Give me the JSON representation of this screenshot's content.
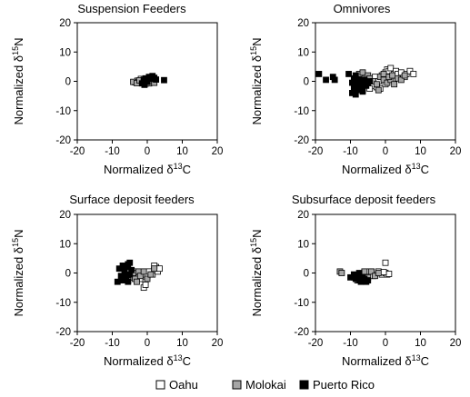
{
  "figure": {
    "legend": [
      {
        "name": "Oahu",
        "color": "#ffffff"
      },
      {
        "name": "Molokai",
        "color": "#a6a6a6"
      },
      {
        "name": "Puerto Rico",
        "color": "#000000"
      }
    ]
  },
  "chart_data": [
    {
      "type": "scatter",
      "title": "Suspension Feeders",
      "xlabel": "Normalized δ13C",
      "ylabel": "Normalized δ15N",
      "xlim": [
        -20,
        20
      ],
      "ylim": [
        -20,
        20
      ],
      "xticks": [
        "-20",
        "-10",
        "0",
        "10",
        "20"
      ],
      "yticks": [
        "20",
        "10",
        "0",
        "-10",
        "-20"
      ],
      "grid": false,
      "series": [
        {
          "name": "Oahu",
          "color": "#ffffff",
          "points": [
            [
              -3.5,
              -0.3
            ],
            [
              -2.8,
              0.2
            ],
            [
              -2.0,
              -0.5
            ],
            [
              -1.2,
              0.4
            ],
            [
              -0.5,
              -0.8
            ],
            [
              0.2,
              -0.3
            ],
            [
              0.8,
              0.5
            ],
            [
              1.5,
              -0.4
            ],
            [
              -1.8,
              0.8
            ]
          ]
        },
        {
          "name": "Molokai",
          "color": "#a6a6a6",
          "points": [
            [
              -4.0,
              -0.2
            ],
            [
              -3.0,
              -0.6
            ],
            [
              -2.2,
              0.3
            ],
            [
              -1.0,
              -0.4
            ],
            [
              -0.3,
              0.6
            ],
            [
              0.5,
              -0.7
            ],
            [
              1.2,
              0.1
            ],
            [
              2.0,
              -0.5
            ]
          ]
        },
        {
          "name": "Puerto Rico",
          "color": "#000000",
          "points": [
            [
              -1.5,
              -0.7
            ],
            [
              -1.0,
              0.5
            ],
            [
              -0.5,
              1.0
            ],
            [
              0.0,
              -0.2
            ],
            [
              0.5,
              1.5
            ],
            [
              1.0,
              0.8
            ],
            [
              1.5,
              1.8
            ],
            [
              2.0,
              1.2
            ],
            [
              2.5,
              0.6
            ],
            [
              -0.8,
              -1.2
            ],
            [
              4.8,
              0.4
            ]
          ]
        }
      ]
    },
    {
      "type": "scatter",
      "title": "Omnivores",
      "xlabel": "Normalized δ13C",
      "ylabel": "Normalized δ15N",
      "xlim": [
        -20,
        20
      ],
      "ylim": [
        -20,
        20
      ],
      "xticks": [
        "-20",
        "-10",
        "0",
        "10",
        "20"
      ],
      "yticks": [
        "20",
        "10",
        "0",
        "-10",
        "-20"
      ],
      "grid": false,
      "series": [
        {
          "name": "Oahu",
          "color": "#ffffff",
          "points": [
            [
              -8.5,
              -1.0
            ],
            [
              -7.0,
              1.0
            ],
            [
              -6.0,
              -0.5
            ],
            [
              -5.0,
              0.5
            ],
            [
              -4.0,
              -1.5
            ],
            [
              -3.0,
              1.5
            ],
            [
              -2.0,
              0.0
            ],
            [
              -1.0,
              2.0
            ],
            [
              0.0,
              3.0
            ],
            [
              0.5,
              4.0
            ],
            [
              1.0,
              3.5
            ],
            [
              1.5,
              4.5
            ],
            [
              2.5,
              2.5
            ],
            [
              3.0,
              3.5
            ],
            [
              3.5,
              2.5
            ],
            [
              4.5,
              3.0
            ],
            [
              5.5,
              1.5
            ],
            [
              6.0,
              2.5
            ],
            [
              7.0,
              3.5
            ],
            [
              8.0,
              2.5
            ],
            [
              -2.5,
              -2.0
            ],
            [
              -1.5,
              -2.5
            ],
            [
              0.0,
              -1.0
            ],
            [
              -4.5,
              -2.5
            ],
            [
              -6.5,
              -3.0
            ]
          ]
        },
        {
          "name": "Molokai",
          "color": "#a6a6a6",
          "points": [
            [
              -7.5,
              2.5
            ],
            [
              -6.5,
              3.0
            ],
            [
              -5.0,
              2.0
            ],
            [
              -4.5,
              1.0
            ],
            [
              -3.5,
              0.0
            ],
            [
              -2.5,
              -1.0
            ],
            [
              -1.5,
              1.5
            ],
            [
              -0.5,
              0.5
            ],
            [
              0.5,
              -0.5
            ],
            [
              1.5,
              0.5
            ],
            [
              2.5,
              -1.0
            ],
            [
              3.5,
              1.0
            ],
            [
              4.5,
              0.5
            ],
            [
              5.5,
              2.0
            ],
            [
              -2.0,
              -3.0
            ],
            [
              -0.5,
              2.5
            ],
            [
              1.0,
              1.5
            ],
            [
              2.0,
              2.0
            ]
          ]
        },
        {
          "name": "Puerto Rico",
          "color": "#000000",
          "points": [
            [
              -19.0,
              2.5
            ],
            [
              -17.0,
              0.5
            ],
            [
              -15.0,
              1.5
            ],
            [
              -14.5,
              0.5
            ],
            [
              -10.5,
              2.5
            ],
            [
              -9.5,
              -0.5
            ],
            [
              -9.0,
              -2.0
            ],
            [
              -8.5,
              -4.5
            ],
            [
              -8.0,
              -3.0
            ],
            [
              -7.5,
              -1.5
            ],
            [
              -7.0,
              -2.5
            ],
            [
              -6.5,
              -1.0
            ],
            [
              -6.0,
              0.5
            ],
            [
              -5.5,
              -1.5
            ],
            [
              -5.0,
              -0.5
            ],
            [
              -4.5,
              0.0
            ],
            [
              -8.5,
              2.0
            ],
            [
              -9.0,
              1.0
            ],
            [
              -8.0,
              0.0
            ],
            [
              -7.0,
              0.5
            ],
            [
              -6.5,
              -3.5
            ],
            [
              -9.5,
              -4.0
            ]
          ]
        }
      ]
    },
    {
      "type": "scatter",
      "title": "Surface deposit feeders",
      "xlabel": "Normalized δ13C",
      "ylabel": "Normalized δ15N",
      "xlim": [
        -20,
        20
      ],
      "ylim": [
        -20,
        20
      ],
      "xticks": [
        "-20",
        "-10",
        "0",
        "10",
        "20"
      ],
      "yticks": [
        "20",
        "10",
        "0",
        "-10",
        "-20"
      ],
      "grid": false,
      "series": [
        {
          "name": "Oahu",
          "color": "#ffffff",
          "points": [
            [
              -4.5,
              -1.0
            ],
            [
              -3.5,
              0.5
            ],
            [
              -3.0,
              -0.5
            ],
            [
              -2.5,
              -1.5
            ],
            [
              -2.0,
              0.0
            ],
            [
              -1.5,
              -2.0
            ],
            [
              -1.0,
              -0.5
            ],
            [
              -0.5,
              -3.0
            ],
            [
              -1.0,
              -5.0
            ],
            [
              -0.5,
              -4.0
            ],
            [
              0.0,
              -1.0
            ],
            [
              0.5,
              0.5
            ],
            [
              1.5,
              -0.5
            ],
            [
              2.0,
              1.0
            ],
            [
              2.5,
              2.0
            ],
            [
              3.0,
              0.5
            ],
            [
              3.5,
              1.5
            ],
            [
              2.0,
              2.5
            ]
          ]
        },
        {
          "name": "Molokai",
          "color": "#a6a6a6",
          "points": [
            [
              -6.0,
              -0.5
            ],
            [
              -5.0,
              -1.5
            ],
            [
              -4.0,
              0.0
            ],
            [
              -3.5,
              -2.0
            ],
            [
              -2.5,
              0.5
            ],
            [
              -2.0,
              -1.0
            ],
            [
              -1.0,
              0.5
            ],
            [
              0.0,
              -2.0
            ],
            [
              1.0,
              -0.5
            ],
            [
              2.0,
              1.5
            ],
            [
              -5.5,
              -2.5
            ],
            [
              -3.0,
              -3.0
            ]
          ]
        },
        {
          "name": "Puerto Rico",
          "color": "#000000",
          "points": [
            [
              -8.5,
              -3.0
            ],
            [
              -8.0,
              1.5
            ],
            [
              -7.5,
              -1.0
            ],
            [
              -7.0,
              2.5
            ],
            [
              -7.0,
              -2.5
            ],
            [
              -6.5,
              0.5
            ],
            [
              -6.0,
              -1.5
            ],
            [
              -6.0,
              2.0
            ],
            [
              -5.5,
              3.0
            ],
            [
              -5.0,
              3.5
            ],
            [
              -5.0,
              -0.5
            ],
            [
              -4.5,
              1.0
            ],
            [
              -5.5,
              -3.0
            ]
          ]
        }
      ]
    },
    {
      "type": "scatter",
      "title": "Subsurface deposit feeders",
      "xlabel": "Normalized δ13C",
      "ylabel": "Normalized δ15N",
      "xlim": [
        -20,
        20
      ],
      "ylim": [
        -20,
        20
      ],
      "xticks": [
        "-20",
        "-10",
        "0",
        "10",
        "20"
      ],
      "yticks": [
        "20",
        "10",
        "0",
        "-10",
        "-20"
      ],
      "grid": false,
      "series": [
        {
          "name": "Oahu",
          "color": "#ffffff",
          "points": [
            [
              -6.0,
              -2.0
            ],
            [
              -5.0,
              -1.0
            ],
            [
              -4.0,
              0.0
            ],
            [
              -3.0,
              -0.5
            ],
            [
              -2.0,
              0.5
            ],
            [
              -1.0,
              -0.5
            ],
            [
              0.0,
              0.0
            ],
            [
              0.5,
              -0.5
            ],
            [
              1.0,
              -0.3
            ],
            [
              -0.5,
              0.3
            ],
            [
              -4.5,
              0.5
            ],
            [
              -3.5,
              -1.0
            ],
            [
              -7.0,
              -1.5
            ],
            [
              0.0,
              3.5
            ]
          ]
        },
        {
          "name": "Molokai",
          "color": "#a6a6a6",
          "points": [
            [
              -13.0,
              0.5
            ],
            [
              -12.5,
              0.0
            ],
            [
              -9.0,
              -1.5
            ],
            [
              -8.0,
              -2.5
            ],
            [
              -7.0,
              -0.5
            ],
            [
              -6.0,
              0.5
            ],
            [
              -5.0,
              -1.5
            ],
            [
              -4.0,
              0.5
            ],
            [
              -3.0,
              -1.0
            ],
            [
              -2.0,
              0.0
            ]
          ]
        },
        {
          "name": "Puerto Rico",
          "color": "#000000",
          "points": [
            [
              -10.0,
              -1.5
            ],
            [
              -9.0,
              -0.5
            ],
            [
              -8.5,
              -2.0
            ],
            [
              -8.0,
              -1.0
            ],
            [
              -7.5,
              -2.5
            ],
            [
              -7.0,
              -3.0
            ],
            [
              -6.5,
              -1.5
            ],
            [
              -6.0,
              -2.0
            ],
            [
              -5.5,
              -3.0
            ],
            [
              -7.5,
              0.0
            ],
            [
              -5.0,
              -2.5
            ]
          ]
        }
      ]
    }
  ]
}
